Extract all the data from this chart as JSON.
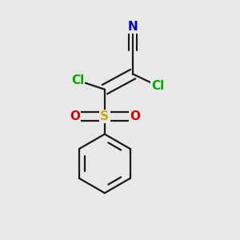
{
  "bg_color": "#e8e8e8",
  "figure_size": [
    3.0,
    3.0
  ],
  "dpi": 100,
  "atom_colors": {
    "N": "#0000cc",
    "Cl": "#00aa00",
    "S": "#ccaa00",
    "O": "#dd0000",
    "bond": "#1a1a1a"
  },
  "bond_lw": 1.6,
  "font_size": 11
}
